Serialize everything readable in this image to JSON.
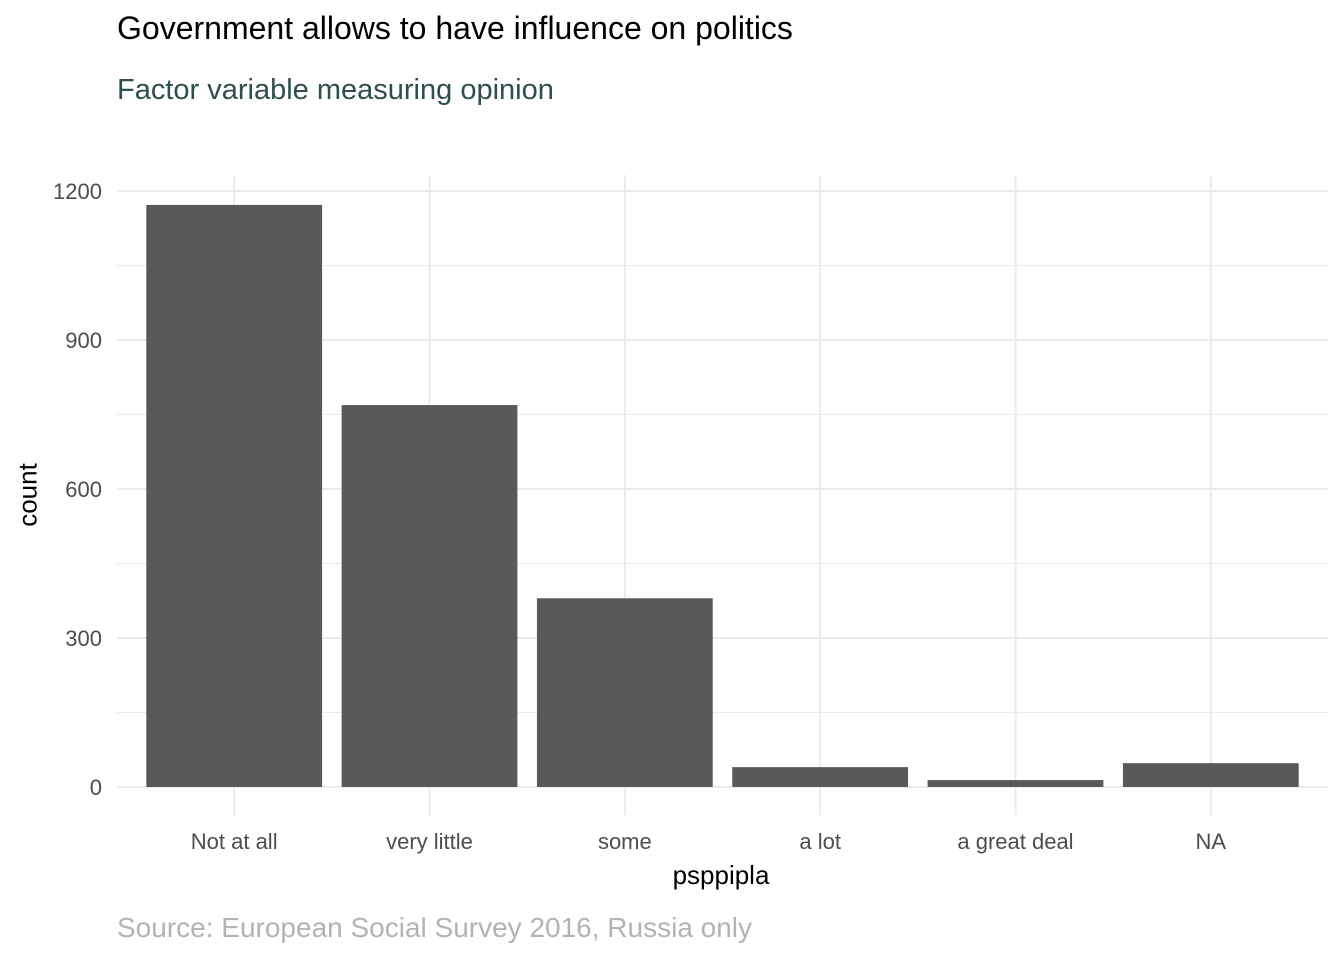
{
  "chart_data": {
    "type": "bar",
    "title": "Government allows to have influence on politics",
    "subtitle": "Factor variable measuring opinion",
    "caption": "Source: European Social Survey 2016, Russia only",
    "xlabel": "psppipla",
    "ylabel": "count",
    "categories": [
      "Not at all",
      "very little",
      "some",
      "a lot",
      "a great deal",
      "NA"
    ],
    "values": [
      1172,
      769,
      380,
      40,
      14,
      48
    ],
    "ylim": [
      0,
      1200
    ],
    "yticks": [
      0,
      300,
      600,
      900,
      1200
    ],
    "grid": true,
    "legend": "none",
    "colors": {
      "bar": "#595959",
      "grid": "#ebebeb",
      "tick_text": "#4d4d4d",
      "subtitle": "#2f4f4f",
      "caption": "#b3b3b3"
    }
  }
}
